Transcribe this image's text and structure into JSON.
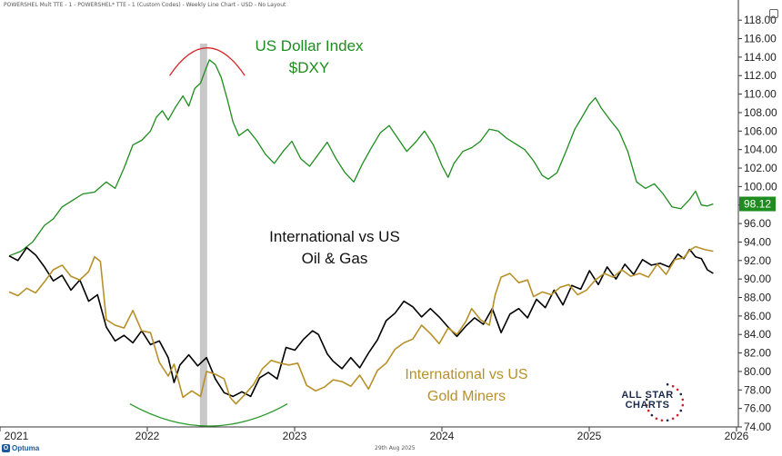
{
  "header": {
    "left_text": "POWERSHEL Mult TTE - 1 - POWERSHEL* TTE - 1 (Custom Codes) - Weekly Line Chart - USD - No Layout"
  },
  "footer": {
    "date_text": "29th Aug 2025",
    "brand": "Optuma",
    "brand_mark": "O"
  },
  "logo": {
    "line1": "ALL STAR",
    "line2": "CHARTS"
  },
  "chart_data": {
    "type": "line",
    "x_axis": {
      "ticks": [
        "2021",
        "2022",
        "2023",
        "2024",
        "2025",
        "2026"
      ],
      "range": [
        2021.0,
        2026.0
      ]
    },
    "y_axis": {
      "position": "right",
      "range": [
        74,
        119
      ],
      "ticks": [
        74,
        76,
        78,
        80,
        82,
        84,
        86,
        88,
        90,
        92,
        94,
        96,
        98,
        100,
        102,
        104,
        106,
        108,
        110,
        112,
        114,
        116,
        118
      ],
      "tick_labels": [
        "74.00",
        "76.00",
        "78.00",
        "80.00",
        "82.00",
        "84.00",
        "86.00",
        "88.00",
        "90.00",
        "92.00",
        "94.00",
        "96.00",
        "98.00",
        "100.00",
        "102.00",
        "104.00",
        "106.00",
        "108.00",
        "110.00",
        "112.00",
        "114.00",
        "116.00",
        "118.00"
      ]
    },
    "highlight_band": {
      "x": 2022.32
    },
    "last_value_label": "98.12",
    "colors": {
      "dxy": "#1e8c1e",
      "oil": "#000000",
      "gold": "#b8902a",
      "arc_red": "#d62a2a",
      "arc_green": "#2a9a2a",
      "band": "#c8c8c8",
      "badge": "#1e8c1e"
    },
    "series": [
      {
        "name": "US Dollar Index $DXY",
        "label_lines": [
          "US Dollar Index",
          "$DXY"
        ],
        "color": "#1e8c1e",
        "points": [
          [
            2021.0,
            92.5
          ],
          [
            2021.08,
            93.0
          ],
          [
            2021.16,
            94.0
          ],
          [
            2021.24,
            95.8
          ],
          [
            2021.3,
            96.5
          ],
          [
            2021.36,
            97.8
          ],
          [
            2021.42,
            98.4
          ],
          [
            2021.5,
            99.2
          ],
          [
            2021.58,
            99.4
          ],
          [
            2021.66,
            100.5
          ],
          [
            2021.72,
            99.8
          ],
          [
            2021.78,
            102.0
          ],
          [
            2021.84,
            104.5
          ],
          [
            2021.9,
            105.0
          ],
          [
            2021.96,
            106.0
          ],
          [
            2022.0,
            107.5
          ],
          [
            2022.04,
            108.2
          ],
          [
            2022.08,
            107.2
          ],
          [
            2022.13,
            108.6
          ],
          [
            2022.18,
            109.8
          ],
          [
            2022.22,
            108.7
          ],
          [
            2022.26,
            110.6
          ],
          [
            2022.3,
            111.2
          ],
          [
            2022.33,
            112.5
          ],
          [
            2022.36,
            113.7
          ],
          [
            2022.4,
            113.2
          ],
          [
            2022.44,
            111.8
          ],
          [
            2022.48,
            109.5
          ],
          [
            2022.52,
            107.0
          ],
          [
            2022.56,
            105.5
          ],
          [
            2022.62,
            106.2
          ],
          [
            2022.68,
            105.0
          ],
          [
            2022.74,
            103.5
          ],
          [
            2022.8,
            102.5
          ],
          [
            2022.86,
            103.8
          ],
          [
            2022.92,
            104.9
          ],
          [
            2022.98,
            103.0
          ],
          [
            2023.04,
            102.2
          ],
          [
            2023.1,
            103.5
          ],
          [
            2023.16,
            104.8
          ],
          [
            2023.22,
            103.0
          ],
          [
            2023.28,
            101.5
          ],
          [
            2023.34,
            100.5
          ],
          [
            2023.4,
            102.5
          ],
          [
            2023.46,
            104.2
          ],
          [
            2023.52,
            105.8
          ],
          [
            2023.58,
            106.6
          ],
          [
            2023.64,
            105.2
          ],
          [
            2023.7,
            103.8
          ],
          [
            2023.76,
            104.8
          ],
          [
            2023.82,
            106.0
          ],
          [
            2023.88,
            104.5
          ],
          [
            2023.94,
            102.2
          ],
          [
            2023.98,
            101.0
          ],
          [
            2024.02,
            102.5
          ],
          [
            2024.08,
            103.8
          ],
          [
            2024.14,
            104.2
          ],
          [
            2024.2,
            104.9
          ],
          [
            2024.26,
            106.2
          ],
          [
            2024.32,
            106.0
          ],
          [
            2024.38,
            105.2
          ],
          [
            2024.44,
            104.6
          ],
          [
            2024.5,
            104.0
          ],
          [
            2024.56,
            102.8
          ],
          [
            2024.62,
            101.2
          ],
          [
            2024.66,
            100.8
          ],
          [
            2024.72,
            101.5
          ],
          [
            2024.78,
            103.8
          ],
          [
            2024.84,
            106.2
          ],
          [
            2024.9,
            107.8
          ],
          [
            2024.94,
            108.9
          ],
          [
            2024.98,
            109.6
          ],
          [
            2025.02,
            108.5
          ],
          [
            2025.08,
            107.2
          ],
          [
            2025.14,
            106.0
          ],
          [
            2025.2,
            103.8
          ],
          [
            2025.26,
            100.5
          ],
          [
            2025.32,
            99.8
          ],
          [
            2025.38,
            100.3
          ],
          [
            2025.44,
            99.2
          ],
          [
            2025.5,
            97.8
          ],
          [
            2025.56,
            97.6
          ],
          [
            2025.62,
            98.6
          ],
          [
            2025.66,
            99.5
          ],
          [
            2025.7,
            98.0
          ],
          [
            2025.74,
            97.9
          ],
          [
            2025.78,
            98.12
          ]
        ]
      },
      {
        "name": "International vs US Oil & Gas",
        "label_lines": [
          "International vs US",
          "Oil & Gas"
        ],
        "color": "#000000",
        "points": [
          [
            2021.0,
            92.5
          ],
          [
            2021.06,
            92.0
          ],
          [
            2021.12,
            93.4
          ],
          [
            2021.18,
            92.6
          ],
          [
            2021.24,
            91.3
          ],
          [
            2021.3,
            89.8
          ],
          [
            2021.36,
            90.4
          ],
          [
            2021.42,
            88.8
          ],
          [
            2021.48,
            89.9
          ],
          [
            2021.54,
            87.6
          ],
          [
            2021.6,
            88.3
          ],
          [
            2021.66,
            84.8
          ],
          [
            2021.72,
            83.3
          ],
          [
            2021.78,
            83.9
          ],
          [
            2021.84,
            83.1
          ],
          [
            2021.9,
            84.4
          ],
          [
            2021.96,
            82.9
          ],
          [
            2022.02,
            83.3
          ],
          [
            2022.08,
            81.5
          ],
          [
            2022.12,
            78.8
          ],
          [
            2022.16,
            80.7
          ],
          [
            2022.22,
            81.8
          ],
          [
            2022.28,
            80.6
          ],
          [
            2022.34,
            81.5
          ],
          [
            2022.4,
            79.2
          ],
          [
            2022.46,
            77.7
          ],
          [
            2022.52,
            77.3
          ],
          [
            2022.58,
            77.8
          ],
          [
            2022.64,
            77.3
          ],
          [
            2022.7,
            79.3
          ],
          [
            2022.76,
            79.9
          ],
          [
            2022.82,
            79.2
          ],
          [
            2022.88,
            82.6
          ],
          [
            2022.94,
            82.3
          ],
          [
            2023.0,
            83.5
          ],
          [
            2023.06,
            84.4
          ],
          [
            2023.1,
            84.0
          ],
          [
            2023.16,
            81.9
          ],
          [
            2023.2,
            81.1
          ],
          [
            2023.26,
            80.3
          ],
          [
            2023.32,
            81.5
          ],
          [
            2023.38,
            80.4
          ],
          [
            2023.44,
            82.0
          ],
          [
            2023.5,
            83.4
          ],
          [
            2023.56,
            85.5
          ],
          [
            2023.62,
            86.3
          ],
          [
            2023.68,
            87.6
          ],
          [
            2023.74,
            87.0
          ],
          [
            2023.8,
            85.9
          ],
          [
            2023.86,
            86.8
          ],
          [
            2023.92,
            85.9
          ],
          [
            2023.98,
            84.8
          ],
          [
            2024.04,
            83.8
          ],
          [
            2024.1,
            84.9
          ],
          [
            2024.16,
            85.8
          ],
          [
            2024.22,
            85.1
          ],
          [
            2024.28,
            86.8
          ],
          [
            2024.34,
            84.2
          ],
          [
            2024.4,
            86.2
          ],
          [
            2024.46,
            86.8
          ],
          [
            2024.52,
            85.8
          ],
          [
            2024.58,
            87.8
          ],
          [
            2024.64,
            86.9
          ],
          [
            2024.7,
            88.8
          ],
          [
            2024.76,
            87.2
          ],
          [
            2024.82,
            89.3
          ],
          [
            2024.88,
            88.9
          ],
          [
            2024.94,
            90.9
          ],
          [
            2025.0,
            89.4
          ],
          [
            2025.06,
            91.3
          ],
          [
            2025.12,
            90.0
          ],
          [
            2025.18,
            91.6
          ],
          [
            2025.24,
            90.5
          ],
          [
            2025.3,
            92.1
          ],
          [
            2025.36,
            91.5
          ],
          [
            2025.42,
            91.7
          ],
          [
            2025.48,
            91.3
          ],
          [
            2025.54,
            92.7
          ],
          [
            2025.58,
            92.2
          ],
          [
            2025.62,
            93.2
          ],
          [
            2025.66,
            92.4
          ],
          [
            2025.7,
            92.2
          ],
          [
            2025.74,
            91.0
          ],
          [
            2025.78,
            90.6
          ]
        ]
      },
      {
        "name": "International vs US Gold Miners",
        "label_lines": [
          "International vs US",
          "Gold Miners"
        ],
        "color": "#b8902a",
        "points": [
          [
            2021.0,
            88.6
          ],
          [
            2021.06,
            88.2
          ],
          [
            2021.12,
            89.0
          ],
          [
            2021.18,
            88.5
          ],
          [
            2021.24,
            89.7
          ],
          [
            2021.3,
            91.0
          ],
          [
            2021.36,
            91.5
          ],
          [
            2021.42,
            90.3
          ],
          [
            2021.48,
            89.9
          ],
          [
            2021.54,
            90.8
          ],
          [
            2021.58,
            92.4
          ],
          [
            2021.62,
            91.9
          ],
          [
            2021.66,
            85.6
          ],
          [
            2021.72,
            85.0
          ],
          [
            2021.78,
            84.7
          ],
          [
            2021.84,
            86.6
          ],
          [
            2021.9,
            84.4
          ],
          [
            2021.96,
            84.2
          ],
          [
            2022.02,
            81.0
          ],
          [
            2022.08,
            79.5
          ],
          [
            2022.12,
            80.8
          ],
          [
            2022.18,
            77.2
          ],
          [
            2022.24,
            77.9
          ],
          [
            2022.3,
            77.3
          ],
          [
            2022.34,
            80.0
          ],
          [
            2022.4,
            79.7
          ],
          [
            2022.46,
            79.2
          ],
          [
            2022.5,
            77.2
          ],
          [
            2022.54,
            76.5
          ],
          [
            2022.6,
            77.5
          ],
          [
            2022.66,
            78.6
          ],
          [
            2022.72,
            80.3
          ],
          [
            2022.78,
            81.2
          ],
          [
            2022.84,
            80.9
          ],
          [
            2022.9,
            80.7
          ],
          [
            2022.96,
            80.9
          ],
          [
            2023.02,
            78.5
          ],
          [
            2023.08,
            77.9
          ],
          [
            2023.14,
            78.3
          ],
          [
            2023.2,
            79.1
          ],
          [
            2023.26,
            78.9
          ],
          [
            2023.32,
            78.4
          ],
          [
            2023.38,
            79.6
          ],
          [
            2023.44,
            78.1
          ],
          [
            2023.5,
            80.1
          ],
          [
            2023.56,
            80.9
          ],
          [
            2023.62,
            82.4
          ],
          [
            2023.68,
            83.1
          ],
          [
            2023.74,
            83.5
          ],
          [
            2023.8,
            85.0
          ],
          [
            2023.86,
            84.1
          ],
          [
            2023.92,
            83.0
          ],
          [
            2023.98,
            84.7
          ],
          [
            2024.04,
            84.0
          ],
          [
            2024.1,
            85.4
          ],
          [
            2024.14,
            86.8
          ],
          [
            2024.2,
            85.6
          ],
          [
            2024.26,
            85.0
          ],
          [
            2024.3,
            88.3
          ],
          [
            2024.34,
            90.2
          ],
          [
            2024.4,
            90.6
          ],
          [
            2024.46,
            89.6
          ],
          [
            2024.52,
            89.9
          ],
          [
            2024.56,
            88.1
          ],
          [
            2024.62,
            88.6
          ],
          [
            2024.68,
            88.3
          ],
          [
            2024.74,
            89.1
          ],
          [
            2024.8,
            89.4
          ],
          [
            2024.86,
            88.3
          ],
          [
            2024.92,
            88.8
          ],
          [
            2024.98,
            89.9
          ],
          [
            2025.04,
            90.6
          ],
          [
            2025.1,
            90.2
          ],
          [
            2025.16,
            91.0
          ],
          [
            2025.22,
            90.3
          ],
          [
            2025.28,
            90.6
          ],
          [
            2025.34,
            90.2
          ],
          [
            2025.4,
            91.6
          ],
          [
            2025.46,
            90.5
          ],
          [
            2025.52,
            92.1
          ],
          [
            2025.58,
            92.3
          ],
          [
            2025.62,
            93.1
          ],
          [
            2025.66,
            93.5
          ],
          [
            2025.72,
            93.2
          ],
          [
            2025.78,
            93.0
          ]
        ]
      }
    ],
    "annotations": [
      {
        "type": "arc",
        "color": "#d62a2a",
        "center": [
          2022.33,
          112.0
        ],
        "span": [
          2022.09,
          2022.6
        ],
        "direction": "up",
        "rise": 2.5
      },
      {
        "type": "arc",
        "color": "#2a9a2a",
        "center": [
          2022.33,
          76.5
        ],
        "span": [
          2021.82,
          2022.89
        ],
        "direction": "down",
        "rise": 2.0
      }
    ]
  }
}
